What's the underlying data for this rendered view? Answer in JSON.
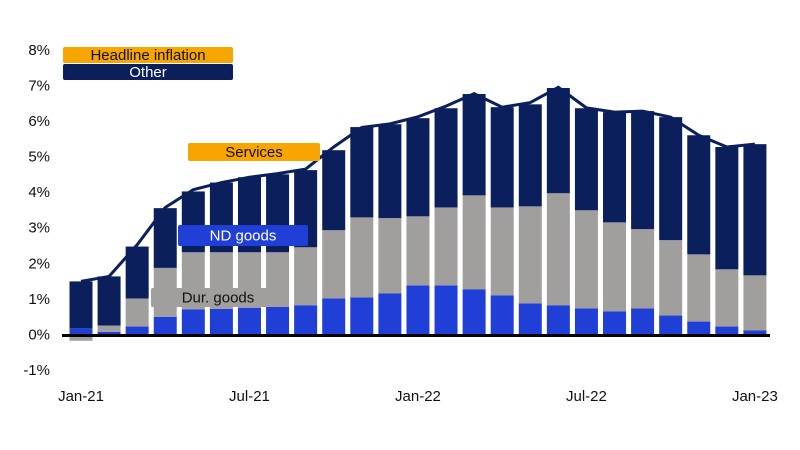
{
  "chart_data": {
    "type": "stacked-bar-line",
    "categories": [
      "Jan-21",
      null,
      null,
      null,
      null,
      null,
      "Jul-21",
      null,
      null,
      null,
      null,
      null,
      "Jan-22",
      null,
      null,
      null,
      null,
      null,
      "Jul-22",
      null,
      null,
      null,
      null,
      null,
      "Jan-23"
    ],
    "series": [
      {
        "name": "ND goods",
        "color": "#1f3fd6",
        "values": [
          0.2,
          0.1,
          0.25,
          0.52,
          0.73,
          0.75,
          0.78,
          0.8,
          0.85,
          1.04,
          1.07,
          1.18,
          1.41,
          1.41,
          1.3,
          1.13,
          0.9,
          0.85,
          0.76,
          0.68,
          0.76,
          0.56,
          0.39,
          0.25,
          0.14
        ]
      },
      {
        "name": "Dur. goods",
        "color": "#a19f9d",
        "values": [
          -0.15,
          0.18,
          0.79,
          1.38,
          1.61,
          1.59,
          1.56,
          1.54,
          1.63,
          1.92,
          2.25,
          2.12,
          1.94,
          2.19,
          2.64,
          2.47,
          2.73,
          3.15,
          2.76,
          2.5,
          2.23,
          2.12,
          1.89,
          1.61,
          1.55
        ]
      },
      {
        "name": "Other",
        "color": "#0a1f5c",
        "values": [
          1.32,
          1.38,
          1.46,
          1.68,
          1.71,
          1.96,
          2.11,
          2.19,
          2.17,
          2.25,
          2.54,
          2.64,
          2.76,
          2.79,
          2.85,
          2.82,
          2.87,
          2.96,
          2.87,
          3.1,
          3.32,
          3.46,
          3.35,
          3.44,
          3.69
        ]
      },
      {
        "name": "Headline inflation",
        "color": "#f7a500",
        "line_color": "#0a1f5c",
        "kind": "line",
        "values": [
          1.52,
          1.66,
          2.55,
          3.6,
          4.1,
          4.3,
          4.45,
          4.55,
          4.68,
          5.3,
          5.85,
          5.95,
          6.15,
          6.45,
          6.8,
          6.42,
          6.55,
          6.98,
          6.4,
          6.28,
          6.31,
          6.14,
          5.63,
          5.3,
          5.38
        ]
      }
    ],
    "annotations": [
      {
        "text": "Services",
        "color": "#f7a500"
      }
    ],
    "ylim": [
      -1,
      8
    ],
    "yticks": [
      {
        "value": -1,
        "label": "-1%"
      },
      {
        "value": 0,
        "label": "0%"
      },
      {
        "value": 1,
        "label": "1%"
      },
      {
        "value": 2,
        "label": "2%"
      },
      {
        "value": 3,
        "label": "3%"
      },
      {
        "value": 4,
        "label": "4%"
      },
      {
        "value": 5,
        "label": "5%"
      },
      {
        "value": 6,
        "label": "6%"
      },
      {
        "value": 7,
        "label": "7%"
      },
      {
        "value": 8,
        "label": "8%"
      }
    ],
    "grid": false
  }
}
